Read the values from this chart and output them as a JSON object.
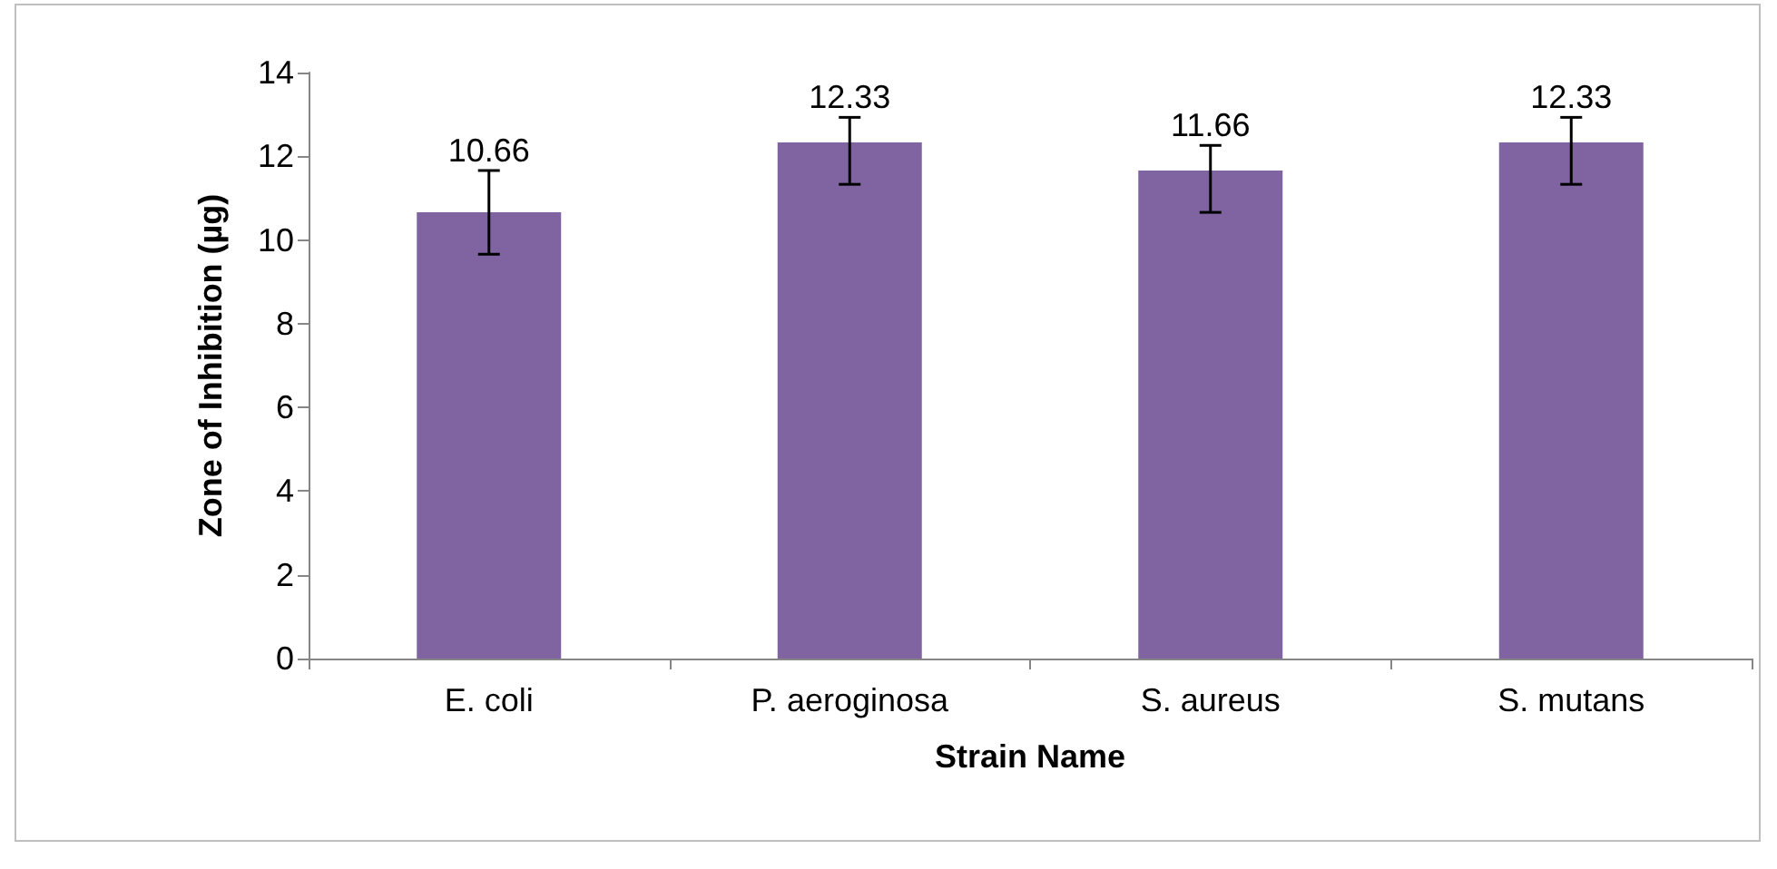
{
  "chart_data": {
    "type": "bar",
    "xlabel": "Strain Name",
    "ylabel": "Zone of Inhibition (µg)",
    "categories": [
      "E. coli",
      "P. aeroginosa",
      "S. aureus",
      "S. mutans"
    ],
    "values": [
      10.66,
      12.33,
      11.66,
      12.33
    ],
    "color": "#8064a2",
    "errors": [
      [
        9.66,
        11.66
      ],
      [
        11.33,
        12.93
      ],
      [
        10.66,
        12.26
      ],
      [
        11.33,
        12.93
      ]
    ],
    "ylim": [
      0,
      14
    ],
    "yticks": [
      0,
      2,
      4,
      6,
      8,
      10,
      12,
      14
    ],
    "grid": false,
    "data_labels": true
  }
}
